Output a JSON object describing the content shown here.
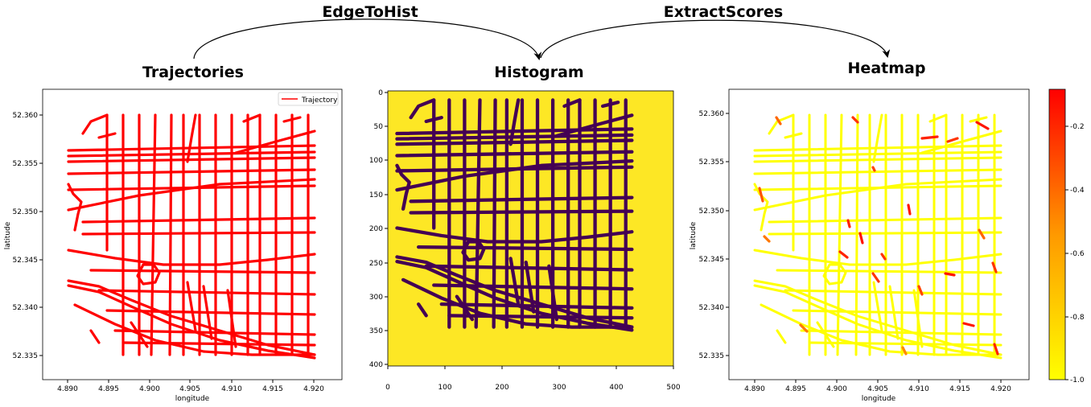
{
  "process": {
    "steps": [
      "EdgeToHist",
      "ExtractScores"
    ],
    "stages": [
      "Trajectories",
      "Histogram",
      "Heatmap"
    ]
  },
  "colors": {
    "trajectory": "#ff0000",
    "hist_road": "#440154",
    "hist_bg": "#fde725",
    "heat_base": "#ffff00",
    "heat_hot": "#ff1500",
    "heat_mid": "#ff7a00"
  },
  "trajectories": {
    "legend_label": "Trajectory",
    "xlabel": "longitude",
    "ylabel": "latitude",
    "x_ticks": [
      "4.890",
      "4.895",
      "4.900",
      "4.905",
      "4.910",
      "4.915",
      "4.920"
    ],
    "y_ticks": [
      "52.360",
      "52.355",
      "52.350",
      "52.345",
      "52.340",
      "52.335"
    ]
  },
  "histogram": {
    "x_ticks": [
      "0",
      "100",
      "200",
      "300",
      "400",
      "500"
    ],
    "y_ticks": [
      "0",
      "50",
      "100",
      "150",
      "200",
      "250",
      "300",
      "350",
      "400"
    ]
  },
  "heatmap": {
    "xlabel": "longitude",
    "ylabel": "latitude",
    "x_ticks": [
      "4.890",
      "4.895",
      "4.900",
      "4.905",
      "4.910",
      "4.915",
      "4.920"
    ],
    "y_ticks": [
      "52.360",
      "52.355",
      "52.350",
      "52.345",
      "52.340",
      "52.335"
    ],
    "colorbar_ticks": [
      "-0.2",
      "-0.4",
      "-0.6",
      "-0.8",
      "-1.0"
    ]
  }
}
